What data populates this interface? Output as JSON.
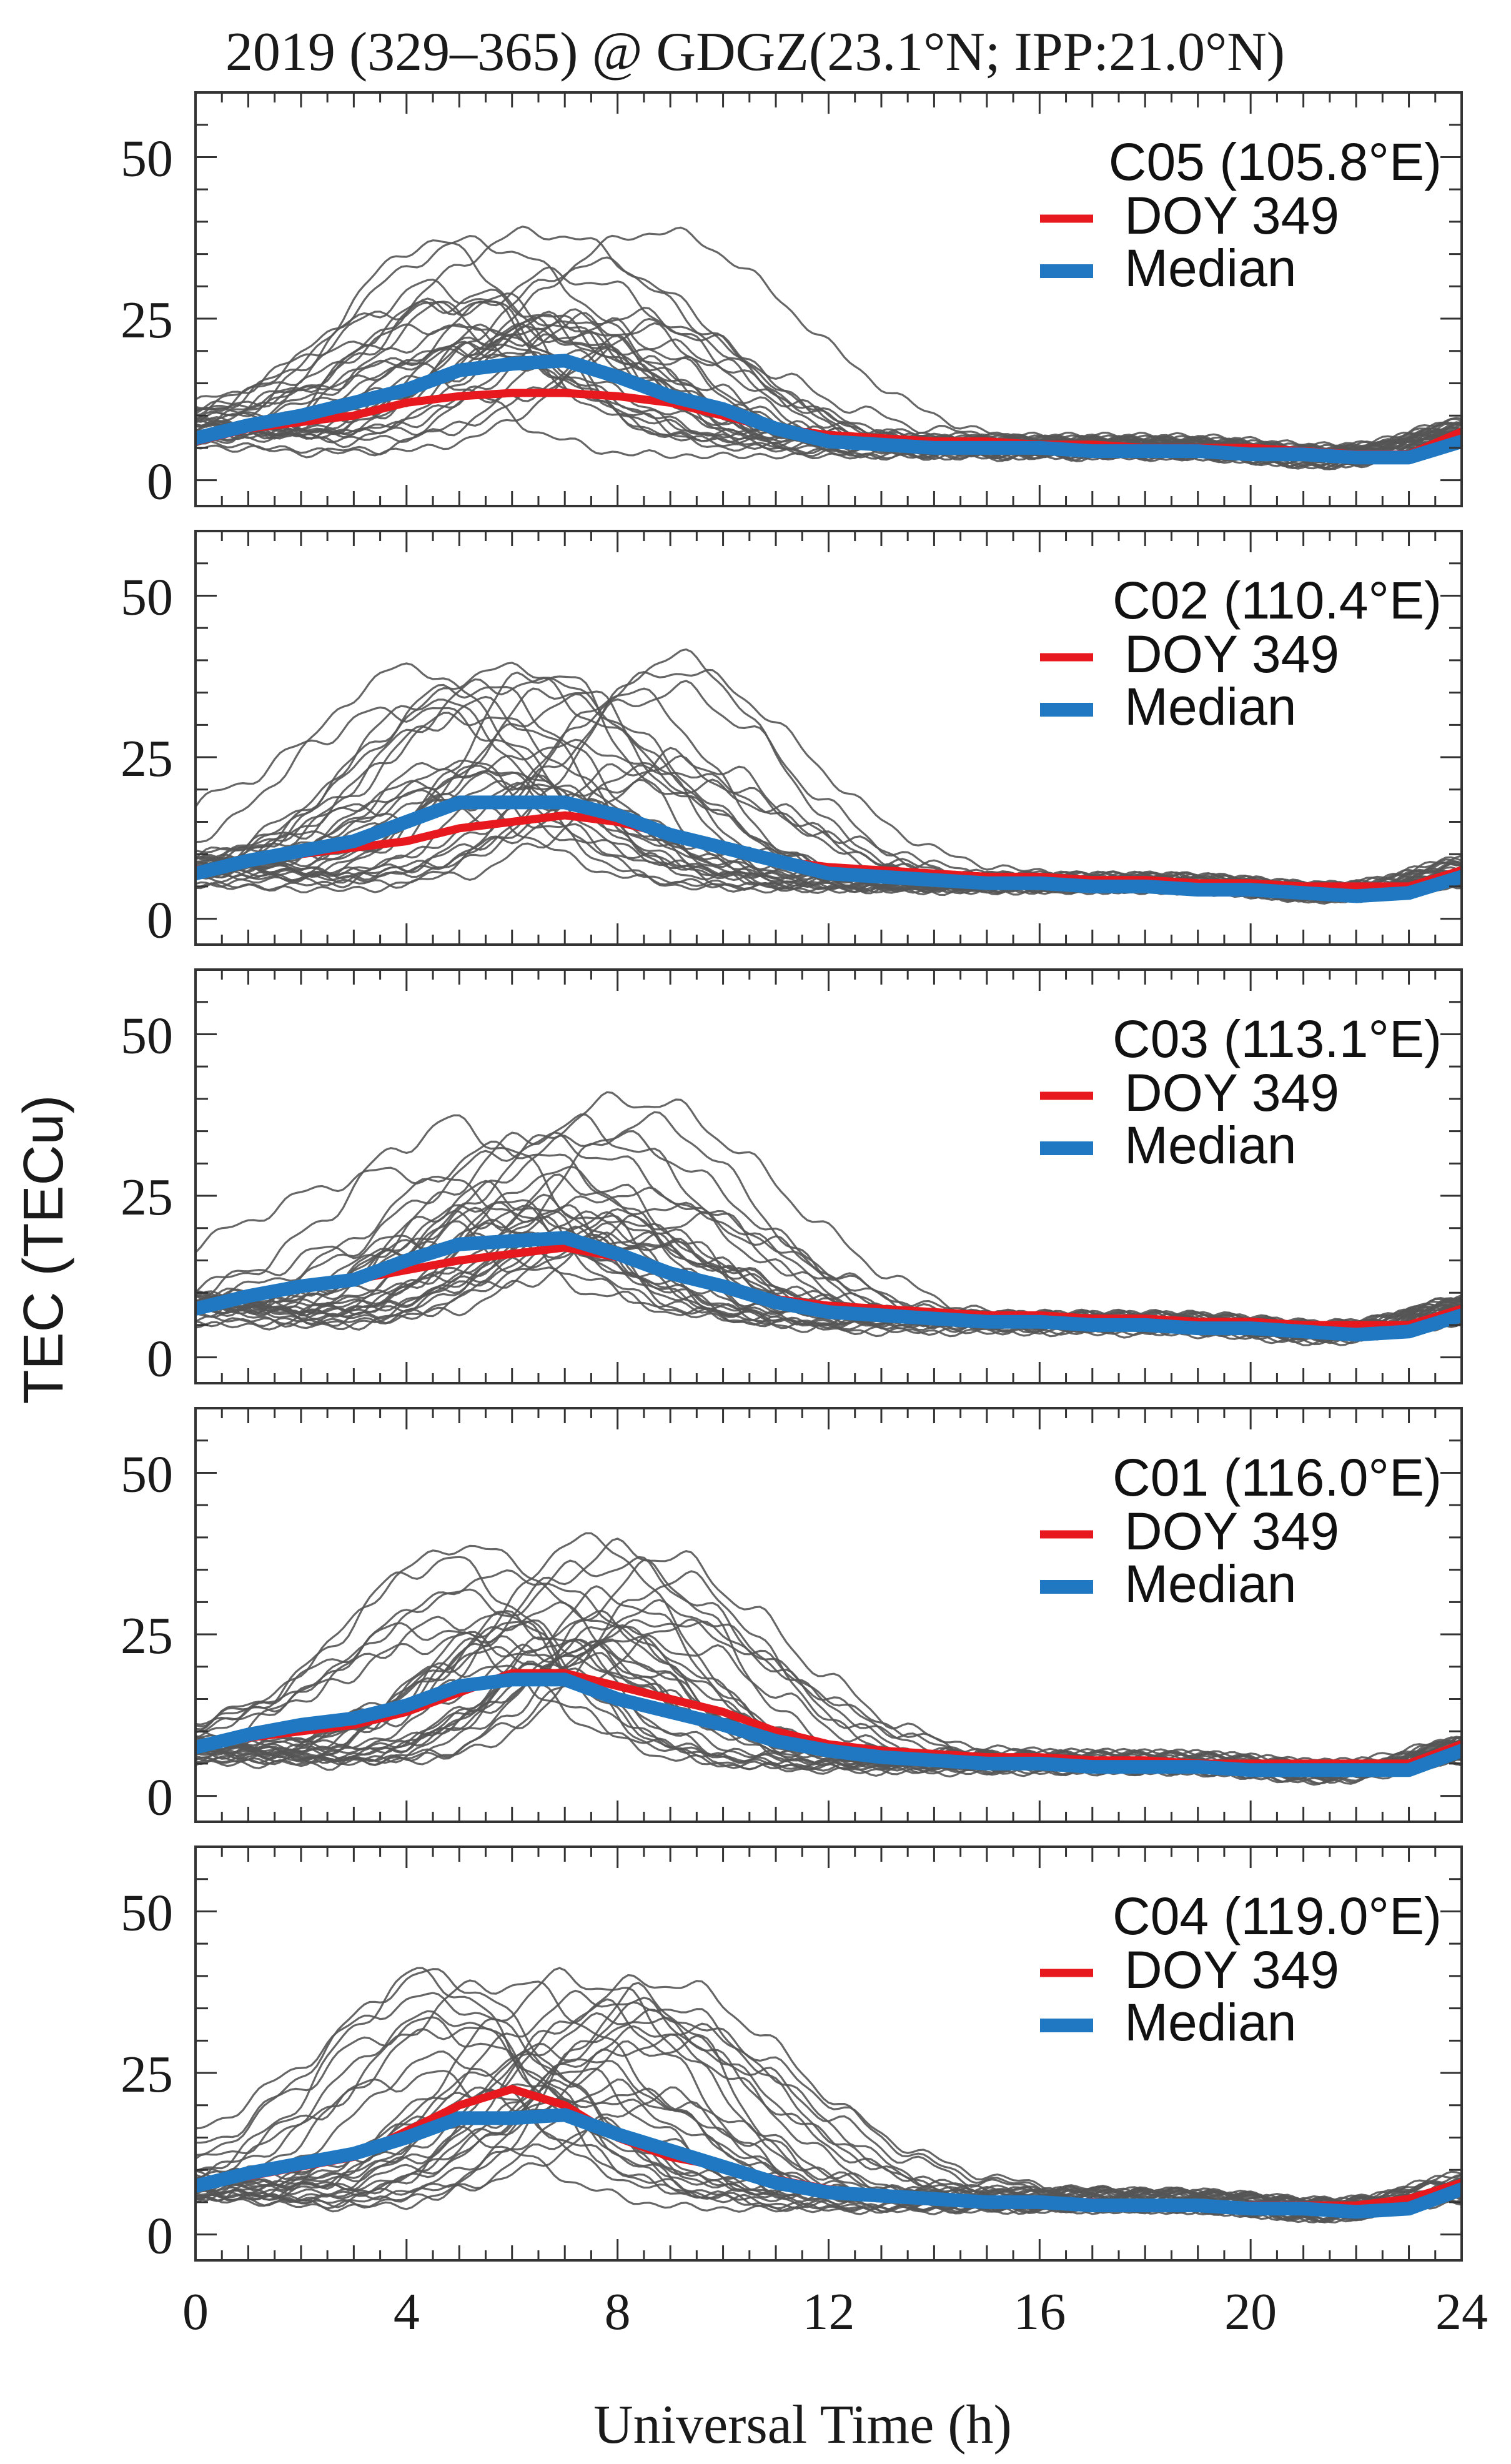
{
  "figure": {
    "title": "2019 (329–365) @ GDGZ(23.1°N; IPP:21.0°N)",
    "xlabel": "Universal Time (h)",
    "ylabel": "TEC (TECu)",
    "x_ticks": [
      "0",
      "4",
      "8",
      "12",
      "16",
      "20",
      "24"
    ],
    "y_ticks": [
      "0",
      "25",
      "50"
    ]
  },
  "colors": {
    "background_days": "#555555",
    "doy349": "#e8191e",
    "median": "#1f78c1",
    "axes": "#333333"
  },
  "chart_data": [
    {
      "type": "line",
      "panel_label": "C05 (105.8°E)",
      "xlim": [
        0,
        24
      ],
      "ylim": [
        -4,
        60
      ],
      "legend": [
        "DOY 349",
        "Median"
      ],
      "legend_position": "top-right",
      "x": [
        0,
        1,
        2,
        3,
        4,
        5,
        6,
        7,
        8,
        9,
        10,
        11,
        12,
        13,
        14,
        15,
        16,
        17,
        18,
        19,
        20,
        21,
        22,
        23,
        24
      ],
      "series": [
        {
          "name": "DOY 349",
          "values": [
            6,
            8,
            9,
            10,
            12,
            13,
            13.5,
            13.5,
            13,
            12,
            10,
            8,
            7,
            6.5,
            6,
            6,
            5.5,
            5.5,
            5,
            5,
            5,
            4.5,
            4,
            4,
            7.5
          ]
        },
        {
          "name": "Median",
          "values": [
            6.5,
            8.5,
            10,
            12,
            14,
            17,
            18,
            18.5,
            16,
            13,
            11,
            8,
            6,
            5.5,
            5,
            5,
            5,
            4.5,
            4.5,
            4.5,
            4,
            4,
            3.5,
            3.5,
            6
          ]
        }
      ]
    },
    {
      "type": "line",
      "panel_label": "C02 (110.4°E)",
      "xlim": [
        0,
        24
      ],
      "ylim": [
        -4,
        60
      ],
      "legend": [
        "DOY 349",
        "Median"
      ],
      "legend_position": "top-right",
      "x": [
        0,
        1,
        2,
        3,
        4,
        5,
        6,
        7,
        8,
        9,
        10,
        11,
        12,
        13,
        14,
        15,
        16,
        17,
        18,
        19,
        20,
        21,
        22,
        23,
        24
      ],
      "series": [
        {
          "name": "DOY 349",
          "values": [
            7.5,
            9,
            10,
            11,
            12,
            14,
            15,
            16,
            15,
            13,
            11,
            9,
            8,
            7.5,
            7,
            6.5,
            6.5,
            6,
            6,
            5.5,
            5.5,
            5,
            5,
            5,
            7.5
          ]
        },
        {
          "name": "Median",
          "values": [
            7,
            9,
            10.5,
            12,
            15,
            18,
            18,
            18,
            16,
            13,
            11,
            9,
            7,
            6.5,
            6,
            5.5,
            5.5,
            5,
            5,
            4.5,
            4.5,
            4,
            3.5,
            4,
            6.5
          ]
        }
      ]
    },
    {
      "type": "line",
      "panel_label": "C03 (113.1°E)",
      "xlim": [
        0,
        24
      ],
      "ylim": [
        -4,
        60
      ],
      "legend": [
        "DOY 349",
        "Median"
      ],
      "legend_position": "top-right",
      "x": [
        0,
        1,
        2,
        3,
        4,
        5,
        6,
        7,
        8,
        9,
        10,
        11,
        12,
        13,
        14,
        15,
        16,
        17,
        18,
        19,
        20,
        21,
        22,
        23,
        24
      ],
      "series": [
        {
          "name": "DOY 349",
          "values": [
            7.5,
            9.5,
            11,
            12,
            13.5,
            15,
            16,
            17,
            15.5,
            13,
            11,
            9,
            8,
            7.5,
            7,
            6.5,
            6.5,
            6,
            6,
            5.5,
            5.5,
            5,
            5,
            5,
            7.5
          ]
        },
        {
          "name": "Median",
          "values": [
            7.5,
            9.5,
            11,
            12,
            15,
            17.5,
            18,
            18.5,
            16,
            13,
            11,
            8.5,
            7,
            6.5,
            6,
            5.5,
            5.5,
            5,
            5,
            4.5,
            4.5,
            4,
            3.5,
            4,
            6.5
          ]
        }
      ]
    },
    {
      "type": "line",
      "panel_label": "C01 (116.0°E)",
      "xlim": [
        0,
        24
      ],
      "ylim": [
        -4,
        60
      ],
      "legend": [
        "DOY 349",
        "Median"
      ],
      "legend_position": "top-right",
      "x": [
        0,
        1,
        2,
        3,
        4,
        5,
        6,
        7,
        8,
        9,
        10,
        11,
        12,
        13,
        14,
        15,
        16,
        17,
        18,
        19,
        20,
        21,
        22,
        23,
        24
      ],
      "series": [
        {
          "name": "DOY 349",
          "values": [
            7.5,
            9,
            10,
            11,
            13,
            16,
            19,
            19,
            17,
            15,
            13,
            10,
            8,
            7,
            6.5,
            6,
            6,
            5.5,
            5.5,
            5,
            5,
            5,
            5,
            5,
            8
          ]
        },
        {
          "name": "Median",
          "values": [
            7.5,
            9.5,
            11,
            12,
            14,
            17,
            18,
            18,
            15,
            13,
            11,
            8.5,
            7,
            6,
            5.5,
            5,
            5,
            4.5,
            4.5,
            4.5,
            4,
            4,
            4,
            4,
            7
          ]
        }
      ]
    },
    {
      "type": "line",
      "panel_label": "C04 (119.0°E)",
      "xlim": [
        0,
        24
      ],
      "ylim": [
        -4,
        60
      ],
      "legend": [
        "DOY 349",
        "Median"
      ],
      "legend_position": "top-right",
      "x": [
        0,
        1,
        2,
        3,
        4,
        5,
        6,
        7,
        8,
        9,
        10,
        11,
        12,
        13,
        14,
        15,
        16,
        17,
        18,
        19,
        20,
        21,
        22,
        23,
        24
      ],
      "series": [
        {
          "name": "DOY 349",
          "values": [
            7.5,
            9,
            10.5,
            12,
            16,
            20,
            22.5,
            20,
            15,
            12,
            10.5,
            8.5,
            7,
            6,
            5.5,
            5,
            5,
            5,
            4.5,
            4.5,
            4.5,
            4.5,
            4.5,
            5.5,
            8
          ]
        },
        {
          "name": "Median",
          "values": [
            7.5,
            9.5,
            11,
            12.5,
            15,
            18,
            18,
            18.5,
            15.5,
            13,
            10.5,
            8,
            6.5,
            6,
            5.5,
            5,
            5,
            4.5,
            4.5,
            4.5,
            4,
            4,
            3.5,
            4,
            7
          ]
        }
      ]
    }
  ]
}
